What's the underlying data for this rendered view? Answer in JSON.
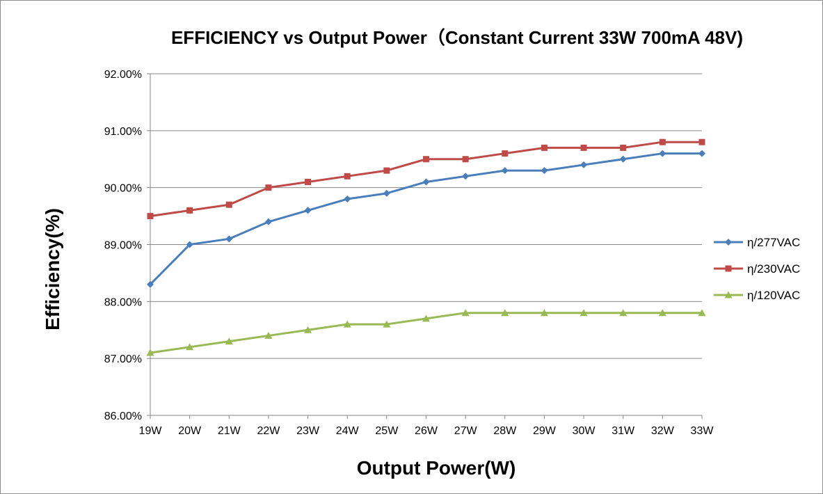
{
  "chart_data": {
    "type": "line",
    "title": "EFFICIENCY vs Output Power（Constant Current 33W 700mA 48V)",
    "xlabel": "Output Power(W)",
    "ylabel": "Efficiency(%)",
    "categories": [
      "19W",
      "20W",
      "21W",
      "22W",
      "23W",
      "24W",
      "25W",
      "26W",
      "27W",
      "28W",
      "29W",
      "30W",
      "31W",
      "32W",
      "33W"
    ],
    "y_ticks": [
      "86.00%",
      "87.00%",
      "88.00%",
      "89.00%",
      "90.00%",
      "91.00%",
      "92.00%"
    ],
    "ylim": [
      86,
      92
    ],
    "grid": true,
    "legend_position": "right",
    "series": [
      {
        "name": "η/277VAC",
        "color": "#4a7ebb",
        "marker": "diamond",
        "values": [
          88.3,
          89.0,
          89.1,
          89.4,
          89.6,
          89.8,
          89.9,
          90.1,
          90.2,
          90.3,
          90.3,
          90.4,
          90.5,
          90.6,
          90.6
        ]
      },
      {
        "name": "η/230VAC",
        "color": "#be4b48",
        "marker": "square",
        "values": [
          89.5,
          89.6,
          89.7,
          90.0,
          90.1,
          90.2,
          90.3,
          90.5,
          90.5,
          90.6,
          90.7,
          90.7,
          90.7,
          90.8,
          90.8
        ]
      },
      {
        "name": "η/120VAC",
        "color": "#98b954",
        "marker": "triangle",
        "values": [
          87.1,
          87.2,
          87.3,
          87.4,
          87.5,
          87.6,
          87.6,
          87.7,
          87.8,
          87.8,
          87.8,
          87.8,
          87.8,
          87.8,
          87.8
        ]
      }
    ]
  }
}
